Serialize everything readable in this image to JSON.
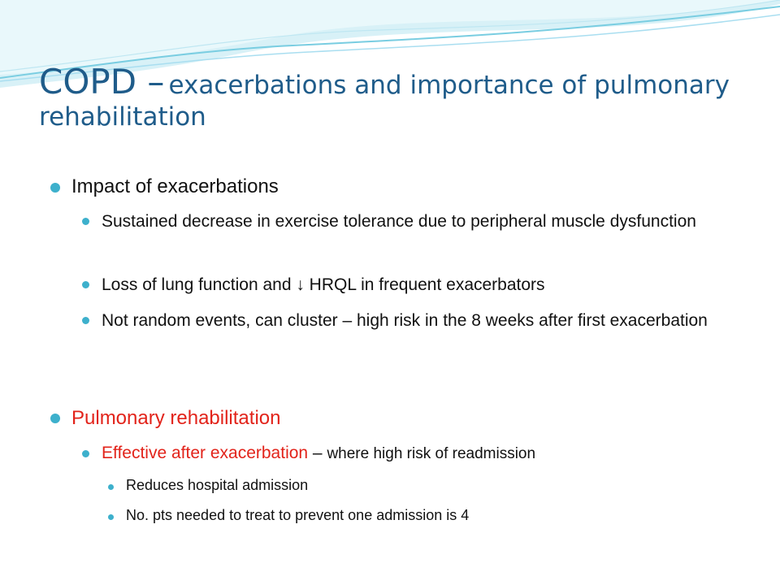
{
  "slide": {
    "title_main": "COPD –",
    "title_rest": "exacerbations and importance of pulmonary rehabilitation",
    "section1": {
      "heading": "Impact of exacerbations",
      "points": [
        "Sustained decrease in exercise tolerance due to peripheral muscle dysfunction",
        "Loss of lung function and ↓ HRQL in frequent exacerbators",
        "Not random events,  can cluster – high risk in the 8 weeks after first exacerbation"
      ]
    },
    "section2": {
      "heading": "Pulmonary rehabilitation",
      "point_red": "Effective after exacerbation",
      "point_dash": " – ",
      "point_rest": "where high risk of readmission",
      "subpoints": [
        "Reduces hospital admission",
        "No. pts needed to treat to prevent one admission is 4"
      ]
    }
  },
  "colors": {
    "title": "#1f5c8a",
    "accent_red": "#e2231a",
    "bullet": "#3db0cc",
    "wave_light": "#cdeef5",
    "wave_mid": "#7fd0e3"
  }
}
